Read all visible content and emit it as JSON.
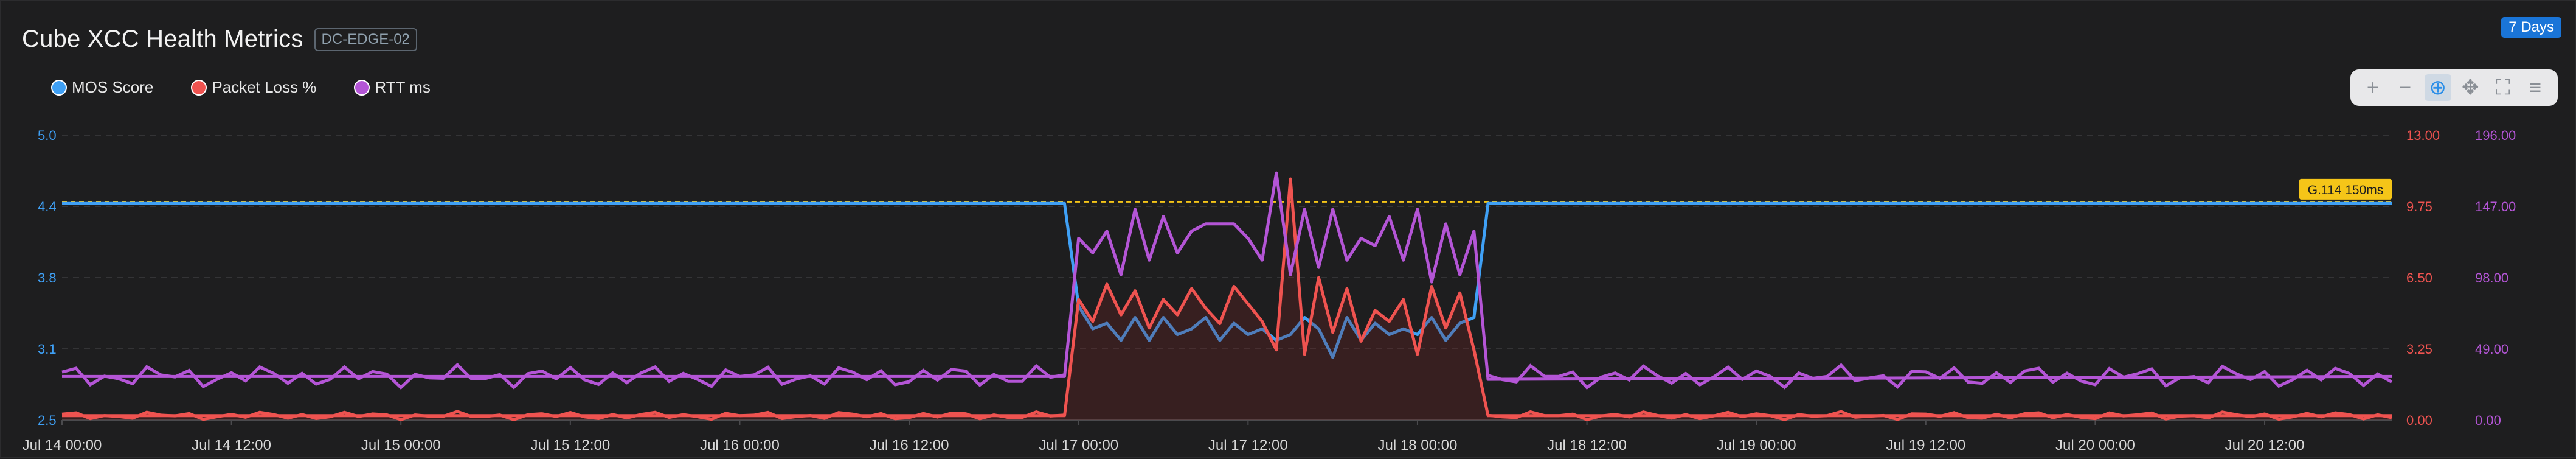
{
  "header": {
    "title": "Cube XCC Health Metrics",
    "device_tag": "DC-EDGE-02"
  },
  "range_badge": "7 Days",
  "legend": [
    {
      "label": "MOS Score",
      "color": "#3fa0f5"
    },
    {
      "label": "Packet Loss %",
      "color": "#ef5350"
    },
    {
      "label": "RTT ms",
      "color": "#b455d6"
    }
  ],
  "toolbar": [
    {
      "name": "zoom-in-icon",
      "glyph": "+"
    },
    {
      "name": "zoom-out-icon",
      "glyph": "−"
    },
    {
      "name": "selection-zoom-icon",
      "glyph": "⊕"
    },
    {
      "name": "pan-icon",
      "glyph": "✥"
    },
    {
      "name": "reset-zoom-icon",
      "glyph": "⛶"
    },
    {
      "name": "menu-icon",
      "glyph": "≡"
    }
  ],
  "chart_data": {
    "type": "line",
    "x_labels": [
      "Jul 14 00:00",
      "Jul 14 12:00",
      "Jul 15 00:00",
      "Jul 15 12:00",
      "Jul 16 00:00",
      "Jul 16 12:00",
      "Jul 17 00:00",
      "Jul 17 12:00",
      "Jul 18 00:00",
      "Jul 18 12:00",
      "Jul 19 00:00",
      "Jul 19 12:00",
      "Jul 20 00:00",
      "Jul 20 12:00"
    ],
    "x_range_hours": [
      0,
      165
    ],
    "axes": {
      "left": {
        "series": "MOS Score",
        "range": [
          2.5,
          5.0
        ],
        "ticks": [
          "2.5",
          "3.1",
          "3.8",
          "4.4",
          "5.0"
        ],
        "color": "#3fa0f5"
      },
      "right1": {
        "series": "Packet Loss %",
        "range": [
          0,
          13
        ],
        "ticks": [
          "0.00",
          "3.25",
          "6.50",
          "9.75",
          "13.00"
        ],
        "color": "#ef5350"
      },
      "right2": {
        "series": "RTT ms",
        "range": [
          0,
          196
        ],
        "ticks": [
          "0.00",
          "49.00",
          "98.00",
          "147.00",
          "196.00"
        ],
        "color": "#b455d6"
      }
    },
    "annotation": {
      "label": "G.114 150ms",
      "axis": "right2",
      "value": 150,
      "color": "#f5c518"
    },
    "series": [
      {
        "name": "MOS Score",
        "axis": "left",
        "color": "#3fa0f5",
        "points": [
          [
            0,
            4.4
          ],
          [
            71,
            4.4
          ],
          [
            72,
            3.5
          ],
          [
            73,
            3.3
          ],
          [
            74,
            3.35
          ],
          [
            75,
            3.2
          ],
          [
            76,
            3.4
          ],
          [
            77,
            3.2
          ],
          [
            78,
            3.4
          ],
          [
            79,
            3.25
          ],
          [
            80,
            3.3
          ],
          [
            81,
            3.4
          ],
          [
            82,
            3.2
          ],
          [
            83,
            3.35
          ],
          [
            84,
            3.25
          ],
          [
            85,
            3.3
          ],
          [
            86,
            3.2
          ],
          [
            87,
            3.25
          ],
          [
            88,
            3.4
          ],
          [
            89,
            3.3
          ],
          [
            90,
            3.05
          ],
          [
            91,
            3.4
          ],
          [
            92,
            3.2
          ],
          [
            93,
            3.35
          ],
          [
            94,
            3.25
          ],
          [
            95,
            3.3
          ],
          [
            96,
            3.25
          ],
          [
            97,
            3.4
          ],
          [
            98,
            3.2
          ],
          [
            99,
            3.35
          ],
          [
            100,
            3.4
          ],
          [
            101,
            4.4
          ],
          [
            165,
            4.4
          ]
        ]
      },
      {
        "name": "Packet Loss %",
        "axis": "right1",
        "color": "#ef5350",
        "points": [
          [
            0,
            0.2
          ],
          [
            71,
            0.2
          ],
          [
            72,
            5.5
          ],
          [
            73,
            4.5
          ],
          [
            74,
            6.2
          ],
          [
            75,
            4.8
          ],
          [
            76,
            5.9
          ],
          [
            77,
            4.2
          ],
          [
            78,
            5.5
          ],
          [
            79,
            4.8
          ],
          [
            80,
            6.0
          ],
          [
            81,
            5.1
          ],
          [
            82,
            4.4
          ],
          [
            83,
            6.1
          ],
          [
            84,
            5.3
          ],
          [
            85,
            4.5
          ],
          [
            86,
            3.2
          ],
          [
            87,
            11.0
          ],
          [
            88,
            3.0
          ],
          [
            89,
            6.5
          ],
          [
            90,
            4.0
          ],
          [
            91,
            6.0
          ],
          [
            92,
            3.6
          ],
          [
            93,
            5.0
          ],
          [
            94,
            4.5
          ],
          [
            95,
            5.5
          ],
          [
            96,
            3.0
          ],
          [
            97,
            6.1
          ],
          [
            98,
            4.2
          ],
          [
            99,
            5.8
          ],
          [
            100,
            3.2
          ],
          [
            101,
            0.2
          ],
          [
            165,
            0.2
          ]
        ]
      },
      {
        "name": "RTT ms",
        "axis": "right2",
        "color": "#b455d6",
        "points": [
          [
            0,
            30
          ],
          [
            71,
            30
          ],
          [
            72,
            125
          ],
          [
            73,
            115
          ],
          [
            74,
            130
          ],
          [
            75,
            100
          ],
          [
            76,
            145
          ],
          [
            77,
            110
          ],
          [
            78,
            140
          ],
          [
            79,
            115
          ],
          [
            80,
            130
          ],
          [
            81,
            135
          ],
          [
            82,
            135
          ],
          [
            83,
            135
          ],
          [
            84,
            125
          ],
          [
            85,
            110
          ],
          [
            86,
            170
          ],
          [
            87,
            100
          ],
          [
            88,
            145
          ],
          [
            89,
            105
          ],
          [
            90,
            145
          ],
          [
            91,
            110
          ],
          [
            92,
            125
          ],
          [
            93,
            120
          ],
          [
            94,
            140
          ],
          [
            95,
            110
          ],
          [
            96,
            145
          ],
          [
            97,
            95
          ],
          [
            98,
            135
          ],
          [
            99,
            100
          ],
          [
            100,
            130
          ],
          [
            101,
            28
          ],
          [
            165,
            30
          ]
        ]
      }
    ]
  }
}
